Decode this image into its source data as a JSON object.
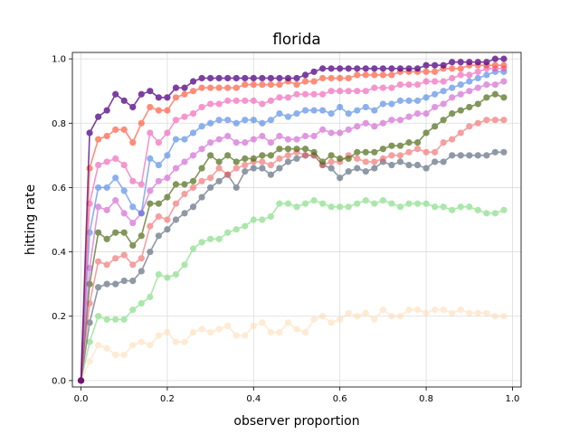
{
  "chart_data": {
    "type": "line",
    "title": "florida",
    "xlabel": "observer proportion",
    "ylabel": "hitting rate",
    "xlim": [
      -0.02,
      1.02
    ],
    "ylim": [
      -0.02,
      1.02
    ],
    "grid": true,
    "x_ticks": [
      "0.0",
      "0.2",
      "0.4",
      "0.6",
      "0.8",
      "1.0"
    ],
    "y_ticks": [
      "0.0",
      "0.2",
      "0.4",
      "0.6",
      "0.8",
      "1.0"
    ],
    "x": [
      0.0,
      0.02,
      0.04,
      0.06,
      0.08,
      0.1,
      0.12,
      0.14,
      0.16,
      0.18,
      0.2,
      0.22,
      0.24,
      0.26,
      0.28,
      0.3,
      0.32,
      0.34,
      0.36,
      0.38,
      0.4,
      0.42,
      0.44,
      0.46,
      0.48,
      0.5,
      0.52,
      0.54,
      0.56,
      0.58,
      0.6,
      0.62,
      0.64,
      0.66,
      0.68,
      0.7,
      0.72,
      0.74,
      0.76,
      0.78,
      0.8,
      0.82,
      0.84,
      0.86,
      0.88,
      0.9,
      0.92,
      0.94,
      0.96,
      0.98
    ],
    "series": [
      {
        "color": "#ffdab0",
        "opacity": 0.55,
        "values": [
          0.0,
          0.06,
          0.11,
          0.1,
          0.08,
          0.08,
          0.11,
          0.12,
          0.11,
          0.14,
          0.15,
          0.12,
          0.12,
          0.15,
          0.16,
          0.15,
          0.16,
          0.17,
          0.14,
          0.14,
          0.17,
          0.18,
          0.15,
          0.15,
          0.18,
          0.16,
          0.15,
          0.19,
          0.2,
          0.18,
          0.19,
          0.21,
          0.2,
          0.21,
          0.19,
          0.22,
          0.2,
          0.2,
          0.22,
          0.22,
          0.21,
          0.22,
          0.22,
          0.21,
          0.22,
          0.21,
          0.21,
          0.21,
          0.2,
          0.2
        ]
      },
      {
        "color": "#90e090",
        "opacity": 0.75,
        "values": [
          0.0,
          0.12,
          0.2,
          0.19,
          0.19,
          0.19,
          0.22,
          0.24,
          0.26,
          0.33,
          0.32,
          0.33,
          0.36,
          0.41,
          0.43,
          0.44,
          0.44,
          0.46,
          0.47,
          0.48,
          0.5,
          0.5,
          0.51,
          0.55,
          0.55,
          0.54,
          0.55,
          0.56,
          0.55,
          0.54,
          0.54,
          0.54,
          0.55,
          0.56,
          0.55,
          0.56,
          0.55,
          0.54,
          0.55,
          0.55,
          0.55,
          0.54,
          0.54,
          0.53,
          0.54,
          0.54,
          0.53,
          0.52,
          0.52,
          0.53
        ]
      },
      {
        "color": "#5f6f80",
        "opacity": 0.7,
        "values": [
          0.0,
          0.18,
          0.29,
          0.3,
          0.3,
          0.31,
          0.31,
          0.34,
          0.4,
          0.45,
          0.47,
          0.5,
          0.52,
          0.54,
          0.57,
          0.6,
          0.62,
          0.64,
          0.6,
          0.65,
          0.66,
          0.66,
          0.64,
          0.66,
          0.68,
          0.69,
          0.7,
          0.7,
          0.67,
          0.66,
          0.63,
          0.65,
          0.66,
          0.65,
          0.66,
          0.68,
          0.67,
          0.68,
          0.67,
          0.67,
          0.66,
          0.68,
          0.68,
          0.7,
          0.7,
          0.7,
          0.7,
          0.7,
          0.71,
          0.71
        ]
      },
      {
        "color": "#f06060",
        "opacity": 0.6,
        "values": [
          0.0,
          0.24,
          0.37,
          0.36,
          0.38,
          0.39,
          0.36,
          0.38,
          0.48,
          0.51,
          0.5,
          0.55,
          0.58,
          0.6,
          0.62,
          0.63,
          0.66,
          0.64,
          0.66,
          0.67,
          0.68,
          0.68,
          0.67,
          0.69,
          0.7,
          0.71,
          0.7,
          0.7,
          0.67,
          0.68,
          0.68,
          0.7,
          0.69,
          0.68,
          0.68,
          0.69,
          0.7,
          0.7,
          0.71,
          0.72,
          0.71,
          0.71,
          0.74,
          0.75,
          0.77,
          0.79,
          0.8,
          0.81,
          0.81,
          0.81
        ]
      },
      {
        "color": "#4d6a14",
        "opacity": 0.7,
        "values": [
          0.0,
          0.3,
          0.46,
          0.44,
          0.46,
          0.46,
          0.42,
          0.45,
          0.55,
          0.55,
          0.57,
          0.61,
          0.61,
          0.62,
          0.66,
          0.7,
          0.68,
          0.7,
          0.68,
          0.69,
          0.69,
          0.7,
          0.7,
          0.72,
          0.72,
          0.72,
          0.72,
          0.71,
          0.68,
          0.7,
          0.69,
          0.69,
          0.71,
          0.71,
          0.71,
          0.72,
          0.73,
          0.73,
          0.74,
          0.74,
          0.77,
          0.79,
          0.81,
          0.83,
          0.84,
          0.85,
          0.86,
          0.88,
          0.89,
          0.88
        ]
      },
      {
        "color": "#d060d0",
        "opacity": 0.65,
        "values": [
          0.0,
          0.35,
          0.54,
          0.53,
          0.56,
          0.52,
          0.49,
          0.52,
          0.59,
          0.62,
          0.63,
          0.66,
          0.68,
          0.7,
          0.72,
          0.74,
          0.75,
          0.76,
          0.74,
          0.74,
          0.75,
          0.76,
          0.74,
          0.76,
          0.75,
          0.75,
          0.76,
          0.76,
          0.78,
          0.77,
          0.77,
          0.78,
          0.79,
          0.8,
          0.79,
          0.8,
          0.81,
          0.81,
          0.82,
          0.83,
          0.83,
          0.85,
          0.86,
          0.88,
          0.89,
          0.9,
          0.91,
          0.92,
          0.92,
          0.93
        ]
      },
      {
        "color": "#3070e0",
        "opacity": 0.55,
        "values": [
          0.0,
          0.46,
          0.6,
          0.6,
          0.63,
          0.59,
          0.54,
          0.52,
          0.69,
          0.67,
          0.7,
          0.75,
          0.75,
          0.77,
          0.79,
          0.8,
          0.81,
          0.81,
          0.8,
          0.81,
          0.81,
          0.8,
          0.81,
          0.83,
          0.82,
          0.83,
          0.84,
          0.84,
          0.84,
          0.83,
          0.85,
          0.83,
          0.84,
          0.85,
          0.84,
          0.86,
          0.86,
          0.87,
          0.87,
          0.87,
          0.88,
          0.89,
          0.9,
          0.91,
          0.92,
          0.93,
          0.94,
          0.95,
          0.96,
          0.96
        ]
      },
      {
        "color": "#f050b0",
        "opacity": 0.6,
        "values": [
          0.0,
          0.55,
          0.67,
          0.68,
          0.69,
          0.67,
          0.62,
          0.61,
          0.77,
          0.74,
          0.77,
          0.81,
          0.82,
          0.83,
          0.85,
          0.86,
          0.86,
          0.87,
          0.87,
          0.87,
          0.87,
          0.86,
          0.87,
          0.88,
          0.88,
          0.89,
          0.89,
          0.89,
          0.89,
          0.9,
          0.9,
          0.9,
          0.9,
          0.9,
          0.91,
          0.91,
          0.91,
          0.92,
          0.92,
          0.92,
          0.93,
          0.93,
          0.93,
          0.94,
          0.95,
          0.95,
          0.96,
          0.97,
          0.97,
          0.97
        ]
      },
      {
        "color": "#ff4020",
        "opacity": 0.6,
        "values": [
          0.0,
          0.66,
          0.75,
          0.76,
          0.78,
          0.78,
          0.74,
          0.8,
          0.85,
          0.84,
          0.84,
          0.88,
          0.89,
          0.9,
          0.91,
          0.91,
          0.91,
          0.91,
          0.91,
          0.92,
          0.92,
          0.92,
          0.92,
          0.92,
          0.93,
          0.92,
          0.93,
          0.93,
          0.94,
          0.94,
          0.94,
          0.94,
          0.95,
          0.95,
          0.95,
          0.95,
          0.95,
          0.96,
          0.96,
          0.96,
          0.96,
          0.96,
          0.97,
          0.97,
          0.97,
          0.98,
          0.98,
          0.98,
          0.98,
          0.98
        ]
      },
      {
        "color": "#500080",
        "opacity": 0.75,
        "values": [
          0.0,
          0.77,
          0.82,
          0.84,
          0.89,
          0.87,
          0.85,
          0.89,
          0.9,
          0.88,
          0.88,
          0.91,
          0.91,
          0.93,
          0.94,
          0.94,
          0.94,
          0.94,
          0.94,
          0.94,
          0.94,
          0.94,
          0.94,
          0.94,
          0.94,
          0.94,
          0.95,
          0.96,
          0.97,
          0.97,
          0.97,
          0.97,
          0.97,
          0.97,
          0.97,
          0.97,
          0.97,
          0.97,
          0.97,
          0.97,
          0.98,
          0.98,
          0.98,
          0.99,
          0.99,
          0.99,
          0.99,
          0.99,
          1.0,
          1.0
        ]
      }
    ]
  }
}
